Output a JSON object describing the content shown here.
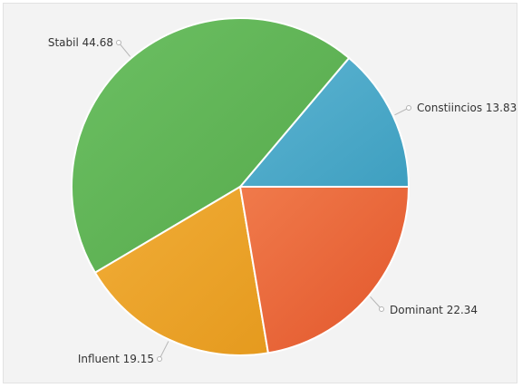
{
  "chart_data": {
    "type": "pie",
    "title": "",
    "start_angle_deg": 0,
    "direction": "counterclockwise",
    "slices": [
      {
        "label": "Constiincios",
        "value": 13.83,
        "display": "Constiincios 13.83",
        "color": "#3e9fc0",
        "color_light": "#5db4d2"
      },
      {
        "label": "Stabil",
        "value": 44.68,
        "display": "Stabil 44.68",
        "color": "#55a84a",
        "color_light": "#6cc063"
      },
      {
        "label": "Influent",
        "value": 19.15,
        "display": "Influent 19.15",
        "color": "#e59a1e",
        "color_light": "#f1ad38"
      },
      {
        "label": "Dominant",
        "value": 22.34,
        "display": "Dominant 22.34",
        "color": "#e2562b",
        "color_light": "#f07a4b"
      }
    ]
  }
}
